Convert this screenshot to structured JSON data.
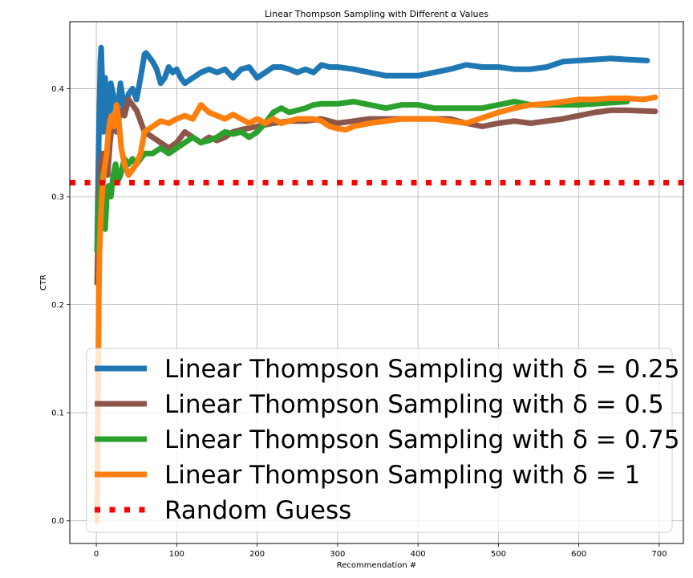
{
  "chart_data": {
    "type": "line",
    "title": "Linear Thompson Sampling with Different α Values",
    "xlabel": "Recommendation #",
    "ylabel": "CTR",
    "xlim": [
      -33,
      730
    ],
    "ylim": [
      -0.021,
      0.462
    ],
    "xticks": [
      0,
      100,
      200,
      300,
      400,
      500,
      600,
      700
    ],
    "yticks": [
      0.0,
      0.1,
      0.2,
      0.3,
      0.4
    ],
    "ytick_labels": [
      "0.0",
      "0.1",
      "0.2",
      "0.3",
      "0.4"
    ],
    "grid": true,
    "legend_position": "lower-right",
    "series": [
      {
        "name": "Linear Thompson Sampling with δ = 0.25",
        "color": "#1f77b4",
        "x": [
          1,
          3,
          5,
          6,
          7,
          9,
          11,
          13,
          15,
          18,
          21,
          25,
          30,
          35,
          40,
          45,
          50,
          55,
          60,
          62,
          65,
          70,
          75,
          80,
          85,
          90,
          95,
          100,
          105,
          110,
          120,
          130,
          140,
          150,
          160,
          170,
          180,
          190,
          200,
          210,
          220,
          230,
          240,
          250,
          260,
          270,
          280,
          290,
          300,
          320,
          340,
          360,
          380,
          400,
          420,
          440,
          460,
          480,
          500,
          520,
          540,
          560,
          580,
          600,
          620,
          640,
          660,
          685
        ],
        "y": [
          0.25,
          0.35,
          0.425,
          0.438,
          0.415,
          0.36,
          0.41,
          0.38,
          0.36,
          0.405,
          0.395,
          0.37,
          0.405,
          0.38,
          0.395,
          0.4,
          0.39,
          0.41,
          0.432,
          0.433,
          0.43,
          0.425,
          0.418,
          0.405,
          0.41,
          0.42,
          0.415,
          0.418,
          0.41,
          0.405,
          0.41,
          0.415,
          0.418,
          0.415,
          0.418,
          0.41,
          0.418,
          0.42,
          0.41,
          0.415,
          0.42,
          0.42,
          0.418,
          0.415,
          0.418,
          0.415,
          0.422,
          0.42,
          0.42,
          0.418,
          0.415,
          0.412,
          0.412,
          0.412,
          0.415,
          0.418,
          0.422,
          0.42,
          0.42,
          0.418,
          0.418,
          0.42,
          0.425,
          0.426,
          0.427,
          0.428,
          0.427,
          0.426
        ]
      },
      {
        "name": "Linear Thompson Sampling with δ = 0.5",
        "color": "#8c564b",
        "x": [
          1,
          3,
          5,
          8,
          11,
          14,
          17,
          20,
          25,
          30,
          35,
          40,
          45,
          50,
          55,
          60,
          70,
          80,
          90,
          100,
          110,
          120,
          130,
          140,
          150,
          160,
          170,
          180,
          200,
          220,
          240,
          260,
          280,
          300,
          320,
          340,
          360,
          380,
          400,
          420,
          440,
          460,
          480,
          500,
          520,
          540,
          560,
          580,
          600,
          620,
          640,
          660,
          695
        ],
        "y": [
          0.22,
          0.3,
          0.33,
          0.34,
          0.33,
          0.32,
          0.35,
          0.37,
          0.36,
          0.38,
          0.375,
          0.39,
          0.385,
          0.38,
          0.37,
          0.36,
          0.355,
          0.35,
          0.345,
          0.35,
          0.36,
          0.355,
          0.35,
          0.355,
          0.352,
          0.355,
          0.36,
          0.362,
          0.365,
          0.368,
          0.37,
          0.37,
          0.372,
          0.368,
          0.37,
          0.372,
          0.372,
          0.372,
          0.372,
          0.372,
          0.372,
          0.368,
          0.365,
          0.368,
          0.37,
          0.368,
          0.37,
          0.372,
          0.375,
          0.378,
          0.38,
          0.38,
          0.379
        ]
      },
      {
        "name": "Linear Thompson Sampling with δ = 0.75",
        "color": "#2ca02c",
        "x": [
          1,
          4,
          7,
          9,
          11,
          13,
          15,
          18,
          21,
          24,
          27,
          30,
          35,
          40,
          45,
          50,
          55,
          60,
          70,
          80,
          90,
          100,
          110,
          120,
          130,
          140,
          150,
          160,
          170,
          180,
          190,
          200,
          210,
          220,
          230,
          240,
          250,
          260,
          270,
          280,
          290,
          300,
          320,
          340,
          360,
          380,
          400,
          420,
          440,
          460,
          480,
          500,
          520,
          540,
          560,
          580,
          600,
          620,
          640,
          660
        ],
        "y": [
          0.25,
          0.3,
          0.32,
          0.29,
          0.27,
          0.3,
          0.31,
          0.3,
          0.32,
          0.33,
          0.315,
          0.32,
          0.335,
          0.33,
          0.335,
          0.33,
          0.335,
          0.34,
          0.34,
          0.345,
          0.34,
          0.345,
          0.35,
          0.355,
          0.35,
          0.352,
          0.355,
          0.36,
          0.358,
          0.36,
          0.355,
          0.36,
          0.368,
          0.378,
          0.382,
          0.378,
          0.38,
          0.382,
          0.385,
          0.386,
          0.386,
          0.386,
          0.388,
          0.385,
          0.382,
          0.385,
          0.385,
          0.382,
          0.382,
          0.382,
          0.382,
          0.385,
          0.388,
          0.385,
          0.385,
          0.385,
          0.385,
          0.386,
          0.387,
          0.388
        ]
      },
      {
        "name": "Linear Thompson Sampling with δ = 1",
        "color": "#ff7f0e",
        "x": [
          1,
          2,
          3,
          4,
          5,
          7,
          9,
          11,
          13,
          15,
          17,
          19,
          22,
          25,
          28,
          31,
          35,
          40,
          45,
          50,
          55,
          60,
          70,
          80,
          90,
          100,
          110,
          120,
          130,
          140,
          150,
          160,
          170,
          180,
          190,
          200,
          210,
          220,
          230,
          240,
          250,
          260,
          270,
          280,
          290,
          300,
          310,
          320,
          340,
          360,
          380,
          400,
          420,
          440,
          460,
          480,
          500,
          520,
          540,
          560,
          580,
          600,
          620,
          640,
          660,
          680,
          695
        ],
        "y": [
          0.0,
          0.1,
          0.2,
          0.25,
          0.27,
          0.3,
          0.32,
          0.33,
          0.34,
          0.36,
          0.37,
          0.375,
          0.365,
          0.385,
          0.37,
          0.345,
          0.33,
          0.32,
          0.325,
          0.33,
          0.34,
          0.36,
          0.365,
          0.37,
          0.368,
          0.372,
          0.375,
          0.372,
          0.385,
          0.378,
          0.375,
          0.372,
          0.376,
          0.372,
          0.368,
          0.372,
          0.368,
          0.372,
          0.368,
          0.37,
          0.372,
          0.372,
          0.372,
          0.37,
          0.365,
          0.363,
          0.362,
          0.365,
          0.368,
          0.37,
          0.372,
          0.372,
          0.372,
          0.37,
          0.368,
          0.373,
          0.378,
          0.382,
          0.385,
          0.386,
          0.388,
          0.39,
          0.39,
          0.391,
          0.391,
          0.39,
          0.392
        ]
      },
      {
        "name": "Random Guess",
        "color": "#ff0000",
        "style": "dotted",
        "x": [
          -33,
          730
        ],
        "y": [
          0.313,
          0.313
        ]
      }
    ]
  }
}
